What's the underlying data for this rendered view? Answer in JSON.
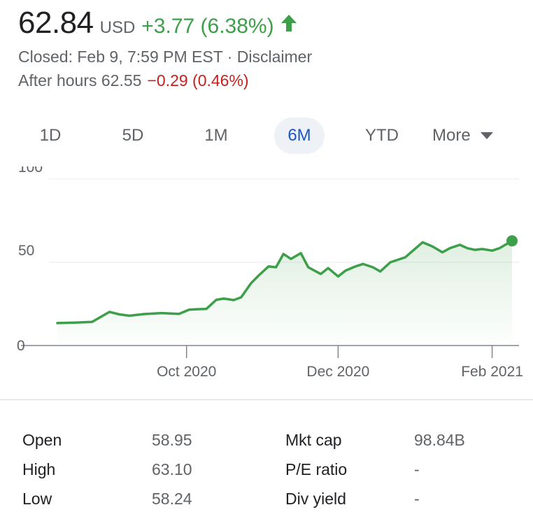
{
  "quote": {
    "price": "62.84",
    "currency": "USD",
    "change": "+3.77 (6.38%)",
    "closed_text": "Closed: Feb 9, 7:59 PM EST · Disclaimer",
    "after_hours_label": "After hours 62.55",
    "after_hours_change": "−0.29 (0.46%)"
  },
  "range_tabs": [
    "1D",
    "5D",
    "1M",
    "6M",
    "YTD"
  ],
  "active_tab": "6M",
  "more_label": "More",
  "colors": {
    "up": "#3d9f4a",
    "down": "#c5221f",
    "active_tab": "#1a57c4"
  },
  "chart_data": {
    "type": "area",
    "x_tick_labels": [
      "Oct 2020",
      "Dec 2020",
      "Feb 2021"
    ],
    "y_tick_labels": [
      "0",
      "50",
      "100"
    ],
    "ylim": [
      0,
      100
    ],
    "grid": true,
    "series": [
      {
        "x": [
          "2020-08-10",
          "2020-08-17",
          "2020-08-24",
          "2020-08-31",
          "2020-09-04",
          "2020-09-08",
          "2020-09-14",
          "2020-09-21",
          "2020-09-28",
          "2020-10-02",
          "2020-10-05",
          "2020-10-09",
          "2020-10-13",
          "2020-10-16",
          "2020-10-20",
          "2020-10-23",
          "2020-10-27",
          "2020-10-30",
          "2020-11-03",
          "2020-11-06",
          "2020-11-09",
          "2020-11-12",
          "2020-11-16",
          "2020-11-19",
          "2020-11-24",
          "2020-11-27",
          "2020-12-01",
          "2020-12-04",
          "2020-12-08",
          "2020-12-11",
          "2020-12-15",
          "2020-12-18",
          "2020-12-22",
          "2020-12-28",
          "2021-01-04",
          "2021-01-08",
          "2021-01-12",
          "2021-01-15",
          "2021-01-19",
          "2021-01-22",
          "2021-01-25",
          "2021-01-28",
          "2021-02-01",
          "2021-02-04",
          "2021-02-09"
        ],
        "values": [
          13.5,
          13.8,
          14.2,
          20.2,
          18.7,
          17.9,
          18.9,
          19.5,
          19.0,
          21.5,
          21.8,
          22.0,
          27.5,
          28.2,
          27.3,
          29.0,
          37.5,
          42.0,
          47.5,
          47.0,
          55.0,
          52.0,
          55.5,
          47.0,
          43.0,
          46.5,
          41.5,
          45.0,
          47.5,
          49.0,
          47.0,
          44.5,
          50.0,
          53.0,
          62.0,
          59.5,
          56.0,
          58.5,
          60.5,
          58.5,
          57.5,
          58.0,
          57.0,
          58.5,
          62.84
        ]
      }
    ]
  },
  "stats": [
    {
      "label": "Open",
      "value": "58.95"
    },
    {
      "label": "High",
      "value": "63.10"
    },
    {
      "label": "Low",
      "value": "58.24"
    },
    {
      "label": "Mkt cap",
      "value": "98.84B"
    },
    {
      "label": "P/E ratio",
      "value": "-"
    },
    {
      "label": "Div yield",
      "value": "-"
    }
  ]
}
